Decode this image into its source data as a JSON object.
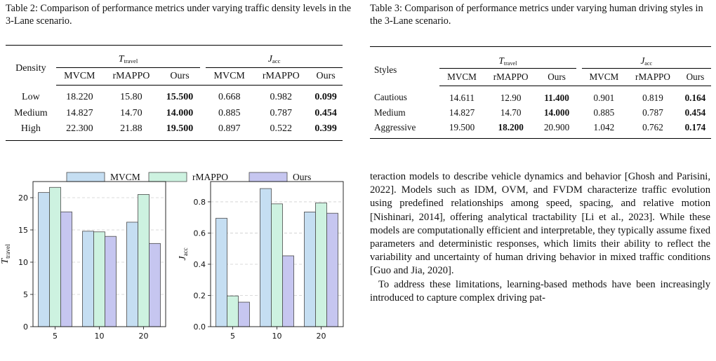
{
  "table2": {
    "caption": "Table 2: Comparison of performance metrics under varying traffic density levels in the 3-Lane scenario.",
    "row_header": "Density",
    "group1": {
      "symbol": "T",
      "sub": "travel"
    },
    "group2": {
      "symbol": "J",
      "sub": "acc"
    },
    "methods": [
      "MVCM",
      "rMAPPO",
      "Ours",
      "MVCM",
      "rMAPPO",
      "Ours"
    ],
    "rows": [
      {
        "label": "Low",
        "values": [
          "18.220",
          "15.80",
          "15.500",
          "0.668",
          "0.982",
          "0.099"
        ]
      },
      {
        "label": "Medium",
        "values": [
          "14.827",
          "14.70",
          "14.000",
          "0.885",
          "0.787",
          "0.454"
        ]
      },
      {
        "label": "High",
        "values": [
          "22.300",
          "21.88",
          "19.500",
          "0.897",
          "0.522",
          "0.399"
        ]
      }
    ],
    "bold": [
      [
        2,
        5
      ],
      [
        2,
        5
      ],
      [
        2,
        5
      ]
    ]
  },
  "table3": {
    "caption": "Table 3: Comparison of performance metrics under varying human driving styles in the 3-Lane scenario.",
    "row_header": "Styles",
    "group1": {
      "symbol": "T",
      "sub": "travel"
    },
    "group2": {
      "symbol": "J",
      "sub": "acc"
    },
    "methods": [
      "MVCM",
      "rMAPPO",
      "Ours",
      "MVCM",
      "rMAPPO",
      "Ours"
    ],
    "rows": [
      {
        "label": "Cautious",
        "values": [
          "14.611",
          "12.90",
          "11.400",
          "0.901",
          "0.819",
          "0.164"
        ]
      },
      {
        "label": "Medium",
        "values": [
          "14.827",
          "14.70",
          "14.000",
          "0.885",
          "0.787",
          "0.454"
        ]
      },
      {
        "label": "Aggressive",
        "values": [
          "19.500",
          "18.200",
          "20.900",
          "1.042",
          "0.762",
          "0.174"
        ]
      }
    ],
    "bold": [
      [
        2,
        5
      ],
      [
        2,
        5
      ],
      [
        1,
        5
      ]
    ]
  },
  "body_text": {
    "p1": "teraction models to describe vehicle dynamics and behavior [Ghosh and Parisini, 2022]. Models such as IDM, OVM, and FVDM characterize traffic evolution using predefined relationships among speed, spacing, and relative motion [Nishinari, 2014], offering analytical tractability [Li et al., 2023]. While these models are computationally efficient and interpretable, they typically assume fixed parameters and deterministic responses, which limits their ability to reflect the variability and uncertainty of human driving behavior in mixed traffic conditions [Guo and Jia, 2020].",
    "p2": "To address these limitations, learning-based methods have been increasingly introduced to capture complex driving pat-"
  },
  "colors": {
    "MVCM": "#c5def2",
    "rMAPPO": "#cdf2e0",
    "Ours": "#c6c6f0",
    "edge": "#4a4a4a"
  },
  "chart_data": [
    {
      "type": "bar",
      "categories": [
        "5",
        "10",
        "20"
      ],
      "series": [
        {
          "name": "MVCM",
          "values": [
            20.8,
            14.8,
            16.2
          ]
        },
        {
          "name": "rMAPPO",
          "values": [
            21.6,
            14.7,
            20.5
          ]
        },
        {
          "name": "Ours",
          "values": [
            17.8,
            14.0,
            12.9
          ]
        }
      ],
      "ylabel": {
        "symbol": "T",
        "sub": "travel"
      },
      "ylim": [
        0,
        22.5
      ],
      "yticks": [
        0,
        5,
        10,
        15,
        20
      ],
      "grid": "horizontal dashed",
      "legend": "top"
    },
    {
      "type": "bar",
      "categories": [
        "5",
        "10",
        "20"
      ],
      "series": [
        {
          "name": "MVCM",
          "values": [
            0.695,
            0.885,
            0.735
          ]
        },
        {
          "name": "rMAPPO",
          "values": [
            0.197,
            0.787,
            0.793
          ]
        },
        {
          "name": "Ours",
          "values": [
            0.157,
            0.454,
            0.727
          ]
        }
      ],
      "ylabel": {
        "symbol": "J",
        "sub": "acc"
      },
      "ylim": [
        0,
        0.93
      ],
      "yticks": [
        0.0,
        0.2,
        0.4,
        0.6,
        0.8
      ],
      "grid": "horizontal dashed",
      "legend": "top"
    }
  ]
}
